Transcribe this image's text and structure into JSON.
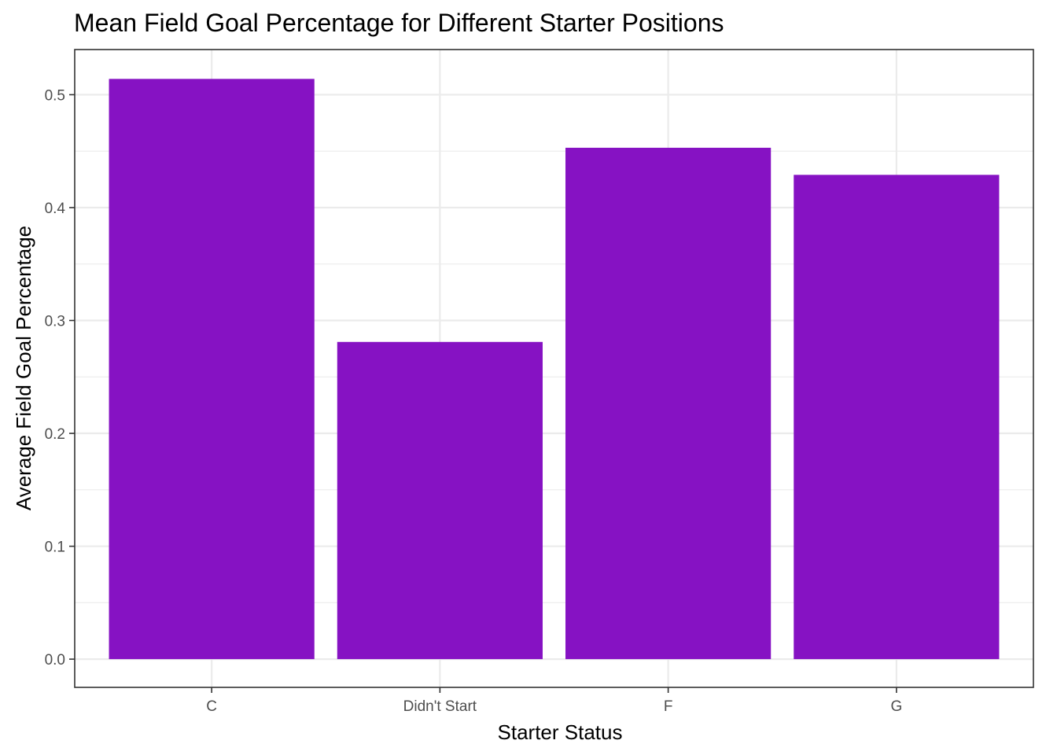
{
  "chart_data": {
    "type": "bar",
    "title": "Mean Field Goal Percentage for Different Starter Positions",
    "xlabel": "Starter Status",
    "ylabel": "Average Field Goal Percentage",
    "categories": [
      "C",
      "Didn't Start",
      "F",
      "G"
    ],
    "values": [
      0.514,
      0.281,
      0.453,
      0.429
    ],
    "ylim": [
      -0.025,
      0.54
    ],
    "yticks": [
      0.0,
      0.1,
      0.2,
      0.3,
      0.4,
      0.5
    ],
    "ytick_labels": [
      "0.0",
      "0.1",
      "0.2",
      "0.3",
      "0.4",
      "0.5"
    ],
    "grid": true,
    "legend": "none",
    "colors": {
      "bar": "#8612c3",
      "background": "#ffffff",
      "grid": "#ebebeb",
      "border": "#333333"
    }
  }
}
